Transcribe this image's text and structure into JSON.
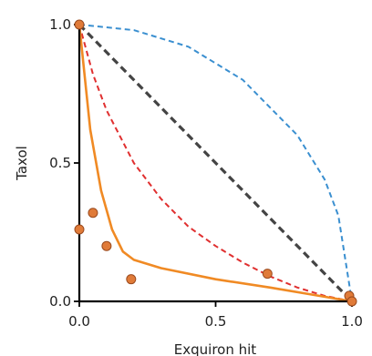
{
  "chart_data": {
    "type": "scatter",
    "title": "",
    "xlabel": "Exquiron hit",
    "ylabel": "Taxol",
    "xlim": [
      0,
      1
    ],
    "ylim": [
      0,
      1
    ],
    "xticks": [
      0,
      0.5,
      1
    ],
    "xtick_labels": [
      "0.0",
      "0.5",
      "1.0"
    ],
    "yticks": [
      0,
      0.5,
      1
    ],
    "ytick_labels": [
      "0.0",
      "0.5",
      "1.0"
    ],
    "grid": false,
    "legend": "none",
    "points": {
      "color": "#e07b39",
      "x": [
        0.0,
        0.0,
        0.05,
        0.1,
        0.19,
        0.69,
        0.99,
        1.0
      ],
      "y": [
        1.0,
        0.26,
        0.32,
        0.2,
        0.08,
        0.1,
        0.02,
        0.0
      ]
    },
    "curves": [
      {
        "style": "dashed",
        "color": "#444444",
        "x": [
          0.0,
          1.0
        ],
        "y": [
          1.0,
          0.0
        ]
      },
      {
        "style": "dashed",
        "color": "#3a8fd0",
        "x": [
          0.0,
          0.2,
          0.4,
          0.6,
          0.8,
          0.9,
          0.95,
          1.0
        ],
        "y": [
          1.0,
          0.98,
          0.92,
          0.8,
          0.6,
          0.44,
          0.31,
          0.0
        ]
      },
      {
        "style": "dashed",
        "color": "#e03030",
        "x": [
          0.0,
          0.05,
          0.1,
          0.2,
          0.3,
          0.4,
          0.5,
          0.6,
          0.7,
          0.8,
          0.9,
          1.0
        ],
        "y": [
          1.0,
          0.82,
          0.69,
          0.5,
          0.37,
          0.27,
          0.2,
          0.14,
          0.09,
          0.05,
          0.02,
          0.0
        ]
      },
      {
        "style": "solid",
        "color": "#f08a24",
        "x": [
          0.0,
          0.04,
          0.08,
          0.12,
          0.16,
          0.2,
          0.3,
          0.5,
          0.7,
          0.85,
          1.0
        ],
        "y": [
          1.0,
          0.62,
          0.4,
          0.26,
          0.18,
          0.15,
          0.12,
          0.08,
          0.05,
          0.025,
          0.0
        ]
      }
    ]
  }
}
